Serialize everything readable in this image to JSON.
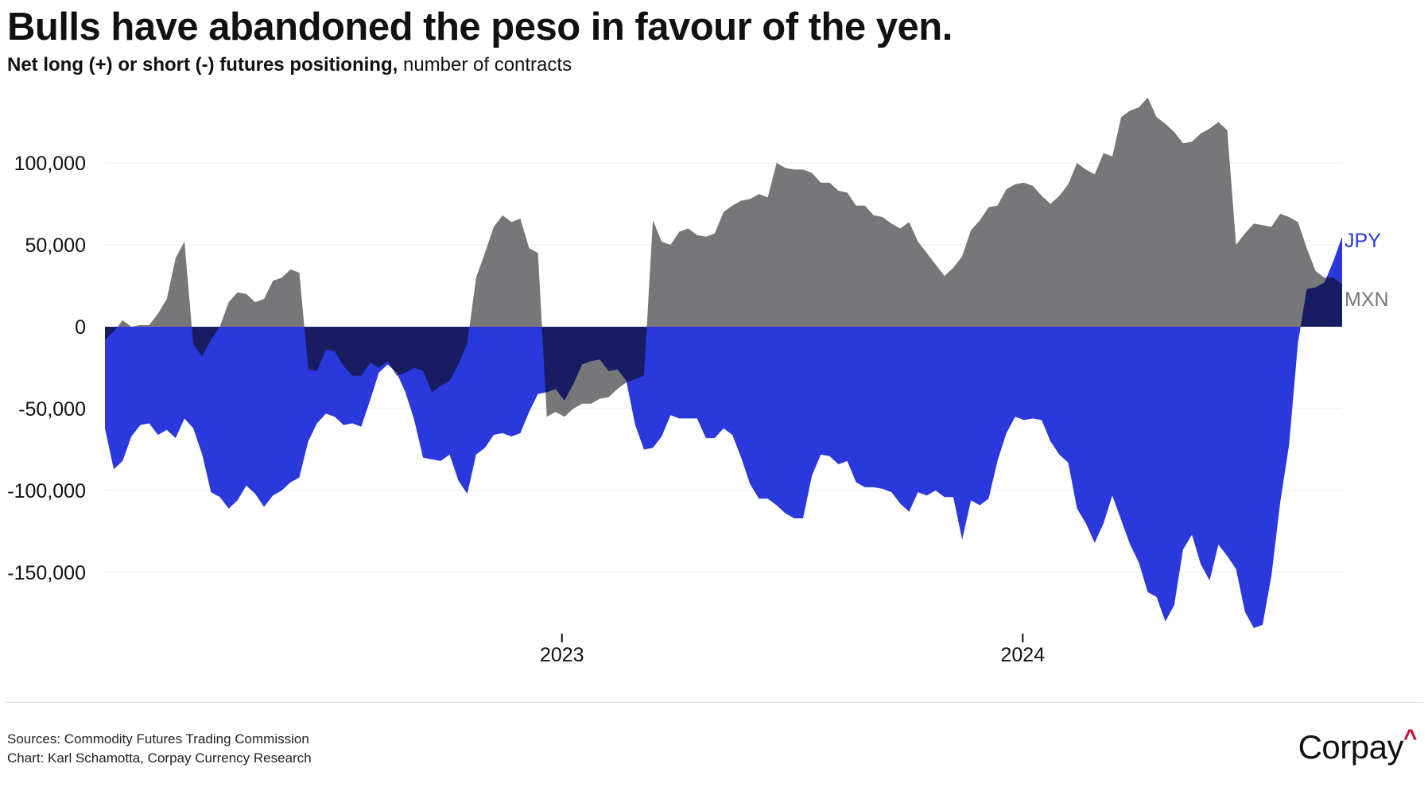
{
  "header": {
    "title": "Bulls have abandoned the peso in favour of the yen.",
    "subtitle_bold": "Net long (+) or short (-) futures positioning,",
    "subtitle_rest": " number of contracts"
  },
  "footer": {
    "sources": "Sources: Commodity Futures Trading Commission",
    "chart_credit": "Chart: Karl Schamotta, Corpay Currency Research",
    "logo": "Corpay"
  },
  "chart_data": {
    "type": "area",
    "title": "Bulls have abandoned the peso in favour of the yen.",
    "ylabel": "Net long (+) or short (-) futures positioning, number of contracts",
    "xlabel": "",
    "x_start": "2022-01-04",
    "x_step_days": 7,
    "ylim": [
      -200000,
      150000
    ],
    "grid": true,
    "yticks": [
      100000,
      50000,
      0,
      -50000,
      -100000,
      -150000
    ],
    "ytick_labels": [
      "100,000",
      "50,000",
      "0",
      "-50,000",
      "-100,000",
      "-150,000"
    ],
    "xticks": [
      "2023-01-01",
      "2024-01-01"
    ],
    "xtick_labels": [
      "2023",
      "2024"
    ],
    "overlap_color": "#181d63",
    "series": [
      {
        "name": "MXN",
        "color": "#77777a",
        "label_color": "#77777a",
        "values_thousands": [
          -8,
          -3,
          4,
          0,
          1,
          1,
          8,
          17,
          42,
          52,
          -11,
          -18,
          -8,
          0,
          15,
          21,
          20,
          15,
          17,
          28,
          30,
          35,
          33,
          -26,
          -27,
          -14,
          -15,
          -24,
          -30,
          -30,
          -22,
          -25,
          -21,
          -30,
          -28,
          -25,
          -27,
          -40,
          -36,
          -33,
          -23,
          -10,
          30,
          45,
          61,
          68,
          64,
          66,
          48,
          45,
          -55,
          -52,
          -55,
          -50,
          -47,
          -47,
          -44,
          -43,
          -38,
          -34,
          -32,
          -30,
          65,
          52,
          50,
          58,
          60,
          56,
          55,
          57,
          70,
          74,
          77,
          78,
          81,
          79,
          100,
          97,
          96,
          96,
          94,
          88,
          88,
          83,
          82,
          74,
          74,
          68,
          67,
          63,
          60,
          64,
          52,
          45,
          38,
          31,
          36,
          43,
          59,
          65,
          73,
          74,
          84,
          87,
          88,
          86,
          80,
          75,
          80,
          87,
          100,
          96,
          93,
          106,
          104,
          128,
          132,
          134,
          140,
          128,
          124,
          119,
          112,
          113,
          118,
          121,
          125,
          120,
          50,
          57,
          63,
          62,
          61,
          69,
          67,
          64,
          48,
          34,
          30,
          30,
          26
        ]
      },
      {
        "name": "JPY",
        "color": "#2a38dc",
        "label_color": "#2a38dc",
        "values_thousands": [
          -62,
          -87,
          -82,
          -67,
          -60,
          -59,
          -66,
          -63,
          -68,
          -56,
          -62,
          -78,
          -101,
          -104,
          -111,
          -106,
          -97,
          -102,
          -110,
          -103,
          -100,
          -95,
          -92,
          -70,
          -59,
          -53,
          -55,
          -60,
          -59,
          -61,
          -45,
          -28,
          -23,
          -28,
          -40,
          -57,
          -80,
          -81,
          -82,
          -78,
          -94,
          -102,
          -78,
          -74,
          -66,
          -65,
          -67,
          -65,
          -52,
          -41,
          -40,
          -38,
          -45,
          -35,
          -23,
          -21,
          -20,
          -27,
          -26,
          -33,
          -60,
          -75,
          -74,
          -67,
          -54,
          -56,
          -56,
          -56,
          -68,
          -68,
          -62,
          -66,
          -80,
          -96,
          -105,
          -105,
          -109,
          -114,
          -117,
          -117,
          -91,
          -78,
          -79,
          -84,
          -82,
          -95,
          -98,
          -98,
          -99,
          -101,
          -108,
          -113,
          -101,
          -103,
          -100,
          -104,
          -104,
          -130,
          -106,
          -109,
          -105,
          -82,
          -65,
          -55,
          -57,
          -56,
          -57,
          -70,
          -78,
          -83,
          -111,
          -120,
          -132,
          -120,
          -103,
          -118,
          -133,
          -144,
          -162,
          -165,
          -180,
          -170,
          -136,
          -127,
          -145,
          -155,
          -133,
          -140,
          -148,
          -174,
          -184,
          -182,
          -152,
          -107,
          -72,
          -10,
          23,
          24,
          27,
          40,
          55
        ]
      }
    ]
  }
}
